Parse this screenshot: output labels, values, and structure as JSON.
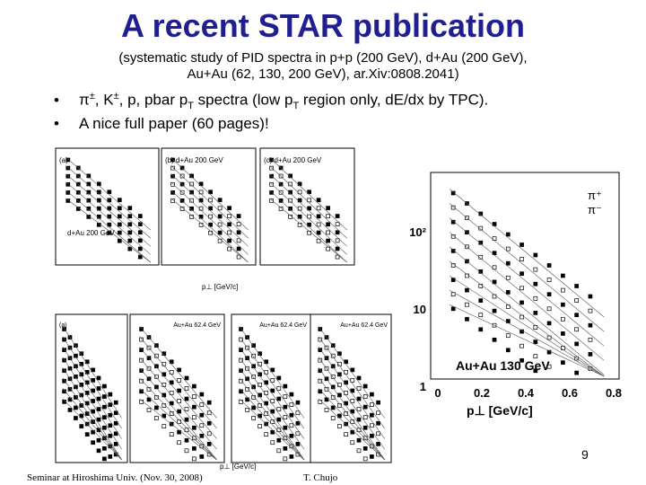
{
  "title": "A recent STAR publication",
  "subtitle": [
    "(systematic study of PID spectra in p+p (200 GeV), d+Au (200 GeV),",
    "Au+Au (62, 130, 200 GeV), ar.Xiv:0808.2041)"
  ],
  "bullets": [
    [
      "π",
      "±",
      ", K",
      "±",
      ", p, pbar p",
      "T",
      " spectra (low p",
      "T",
      " region only, dE/dx by TPC)."
    ],
    [
      "A nice full paper (60 pages)!"
    ]
  ],
  "figures": {
    "top_panels": [
      "(a)",
      "(b) d+Au 200 GeV",
      "(c) d+Au 200 GeV"
    ],
    "top_label": "d+Au 200 GeV",
    "top_xlabel": "p⊥ [GeV/c]",
    "right": {
      "label": "Au+Au 130 GeV",
      "xlabel": "p⊥ [GeV/c]",
      "xticks": [
        "0",
        "0.2",
        "0.4",
        "0.6",
        "0.8"
      ],
      "yticks": [
        "1",
        "10",
        "10²"
      ],
      "legend": [
        "π⁺",
        "π⁻"
      ]
    },
    "bottom_panels": [
      "(a)",
      "Au+Au 62.4 GeV",
      "Au+Au 62.4 GeV",
      "Au+Au 62.4 GeV"
    ],
    "bottom_xlabel": "p⊥ [GeV/c]"
  },
  "footer": {
    "left": "Seminar at Hiroshima Univ. (Nov. 30, 2008)",
    "right": "T. Chujo",
    "page": "9"
  }
}
